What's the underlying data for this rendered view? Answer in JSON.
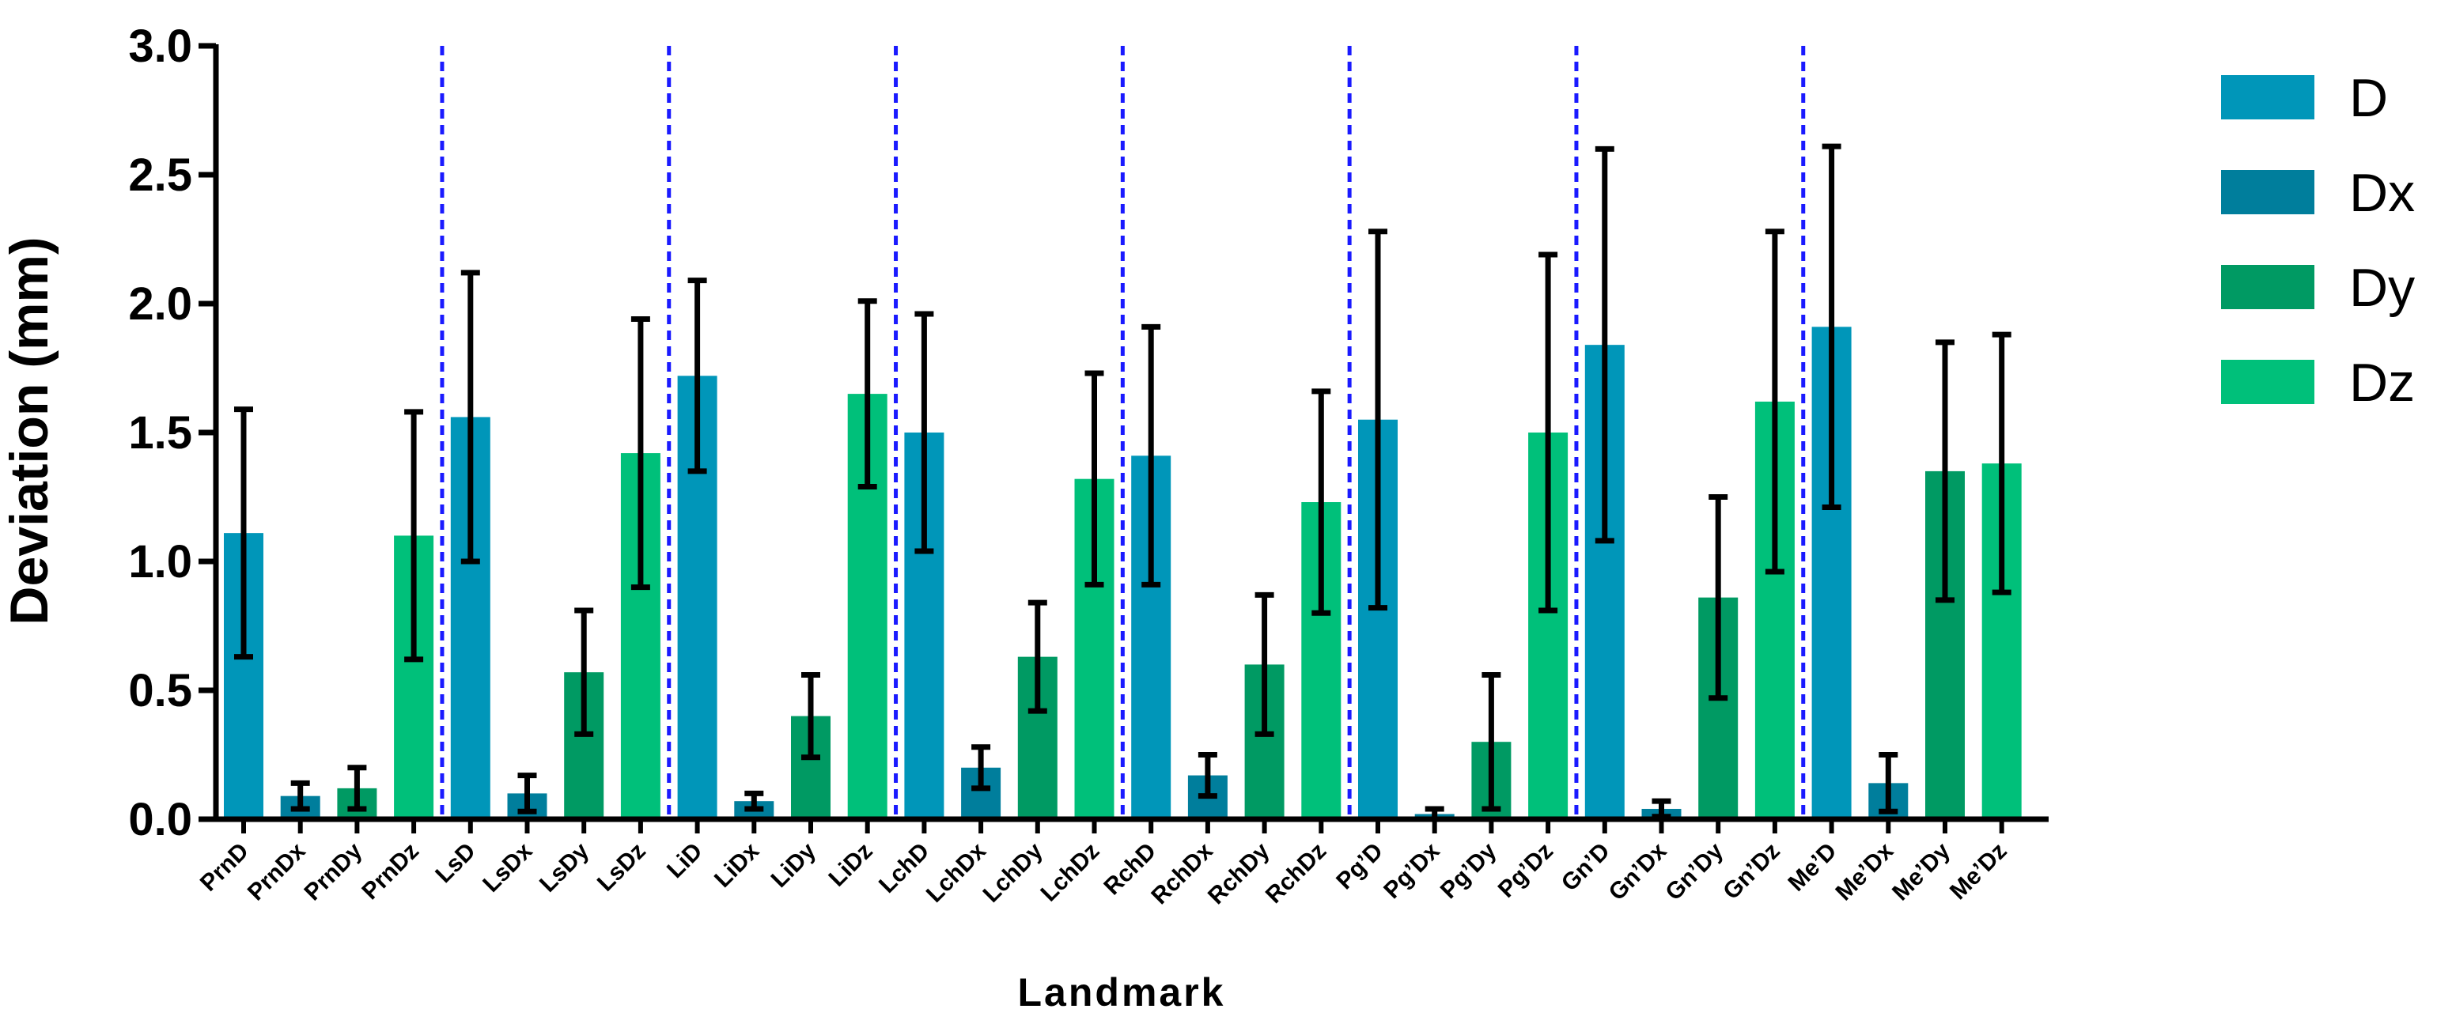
{
  "chart_data": {
    "type": "bar",
    "title": "",
    "xlabel": "Landmark",
    "ylabel": "Deviation (mm)",
    "ylim": [
      0,
      3.0
    ],
    "yticks": [
      "0.0",
      "0.5",
      "1.0",
      "1.5",
      "2.0",
      "2.5",
      "3.0"
    ],
    "grid": false,
    "legend_position": "right",
    "series": [
      {
        "name": "D",
        "color": "#0096B9"
      },
      {
        "name": "Dx",
        "color": "#007E9C"
      },
      {
        "name": "Dy",
        "color": "#009A63"
      },
      {
        "name": "Dz",
        "color": "#00C07A"
      }
    ],
    "group_separator": "dashed-blue",
    "categories": [
      {
        "label": "PrnD",
        "series": "D",
        "value": 1.11,
        "error": 0.48
      },
      {
        "label": "PrnDx",
        "series": "Dx",
        "value": 0.09,
        "error": 0.05
      },
      {
        "label": "PrnDy",
        "series": "Dy",
        "value": 0.12,
        "error": 0.08
      },
      {
        "label": "PrnDz",
        "series": "Dz",
        "value": 1.1,
        "error": 0.48
      },
      {
        "label": "LsD",
        "series": "D",
        "value": 1.56,
        "error": 0.56
      },
      {
        "label": "LsDx",
        "series": "Dx",
        "value": 0.1,
        "error": 0.07
      },
      {
        "label": "LsDy",
        "series": "Dy",
        "value": 0.57,
        "error": 0.24
      },
      {
        "label": "LsDz",
        "series": "Dz",
        "value": 1.42,
        "error": 0.52
      },
      {
        "label": "LiD",
        "series": "D",
        "value": 1.72,
        "error": 0.37
      },
      {
        "label": "LiDx",
        "series": "Dx",
        "value": 0.07,
        "error": 0.03
      },
      {
        "label": "LiDy",
        "series": "Dy",
        "value": 0.4,
        "error": 0.16
      },
      {
        "label": "LiDz",
        "series": "Dz",
        "value": 1.65,
        "error": 0.36
      },
      {
        "label": "LchD",
        "series": "D",
        "value": 1.5,
        "error": 0.46
      },
      {
        "label": "LchDx",
        "series": "Dx",
        "value": 0.2,
        "error": 0.08
      },
      {
        "label": "LchDy",
        "series": "Dy",
        "value": 0.63,
        "error": 0.21
      },
      {
        "label": "LchDz",
        "series": "Dz",
        "value": 1.32,
        "error": 0.41
      },
      {
        "label": "RchD",
        "series": "D",
        "value": 1.41,
        "error": 0.5
      },
      {
        "label": "RchDx",
        "series": "Dx",
        "value": 0.17,
        "error": 0.08
      },
      {
        "label": "RchDy",
        "series": "Dy",
        "value": 0.6,
        "error": 0.27
      },
      {
        "label": "RchDz",
        "series": "Dz",
        "value": 1.23,
        "error": 0.43
      },
      {
        "label": "Pg’D",
        "series": "D",
        "value": 1.55,
        "error": 0.73
      },
      {
        "label": "Pg’Dx",
        "series": "Dx",
        "value": 0.02,
        "error": 0.02
      },
      {
        "label": "Pg’Dy",
        "series": "Dy",
        "value": 0.3,
        "error": 0.26
      },
      {
        "label": "Pg’Dz",
        "series": "Dz",
        "value": 1.5,
        "error": 0.69
      },
      {
        "label": "Gn’D",
        "series": "D",
        "value": 1.84,
        "error": 0.76
      },
      {
        "label": "Gn’Dx",
        "series": "Dx",
        "value": 0.04,
        "error": 0.03
      },
      {
        "label": "Gn’Dy",
        "series": "Dy",
        "value": 0.86,
        "error": 0.39
      },
      {
        "label": "Gn’Dz",
        "series": "Dz",
        "value": 1.62,
        "error": 0.66
      },
      {
        "label": "Me’D",
        "series": "D",
        "value": 1.91,
        "error": 0.7
      },
      {
        "label": "Me’Dx",
        "series": "Dx",
        "value": 0.14,
        "error": 0.11
      },
      {
        "label": "Me’Dy",
        "series": "Dy",
        "value": 1.35,
        "error": 0.5
      },
      {
        "label": "Me’Dz",
        "series": "Dz",
        "value": 1.38,
        "error": 0.5
      }
    ]
  }
}
